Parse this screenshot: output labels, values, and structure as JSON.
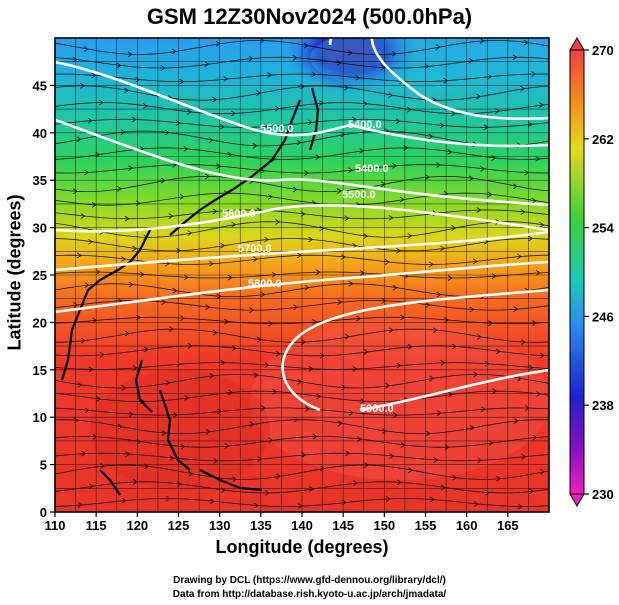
{
  "title": "GSM 12Z30Nov2024 (500.0hPa)",
  "xlabel": "Longitude (degrees)",
  "ylabel": "Latitude  (degrees)",
  "credit_line1": "Drawing by DCL (https://www.gfd-dennou.org/library/dcl/)",
  "credit_line2": "Data from http://database.rish.kyoto-u.ac.jp/arch/jmadata/",
  "x_ticks": [
    "110",
    "115",
    "120",
    "125",
    "130",
    "135",
    "140",
    "145",
    "150",
    "155",
    "160",
    "165"
  ],
  "y_ticks": [
    "0",
    "5",
    "10",
    "15",
    "20",
    "25",
    "30",
    "35",
    "40",
    "45"
  ],
  "colorbar_ticks": [
    "270",
    "262",
    "254",
    "246",
    "238",
    "230"
  ],
  "contour_labels": [
    "5400.0",
    "5500.0",
    "5400.0",
    "5500.0",
    "5600.0",
    "5700.0",
    "5800.0",
    "5900.0"
  ],
  "map": {
    "lon_range": [
      110,
      170
    ],
    "lat_range": [
      0,
      50
    ],
    "field_range": [
      230,
      270
    ],
    "field_unit_hint": "temperature shading",
    "contour_color": "#ffffff"
  }
}
